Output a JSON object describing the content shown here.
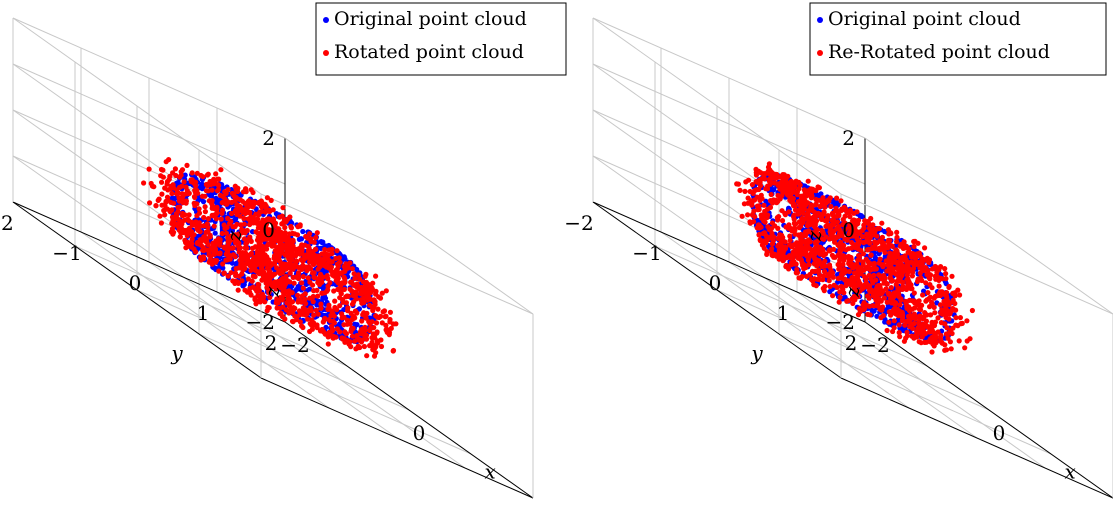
{
  "chart_data": [
    {
      "type": "scatter",
      "dimensions": 3,
      "xlabel": "x",
      "ylabel": "y",
      "zlabel": "z",
      "xlim": [
        -2,
        2
      ],
      "ylim": [
        -2,
        2
      ],
      "zlim": [
        -2,
        2
      ],
      "xticks": [
        "−2",
        "0"
      ],
      "yticks": [
        "−2",
        "−1",
        "0",
        "1",
        "2"
      ],
      "zticks": [
        "−2",
        "0",
        "2"
      ],
      "grid": true,
      "legend_position": "top-right",
      "series": [
        {
          "name": "Original point cloud",
          "color": "#0000ff",
          "shape": "torus",
          "major_radius": 1.5,
          "minor_radius": 0.5,
          "n_points": 900,
          "distribution": "surface"
        },
        {
          "name": "Rotated point cloud",
          "color": "#ff0000",
          "shape": "torus",
          "major_radius": 1.5,
          "minor_radius": 0.5,
          "n_points": 1400,
          "distribution": "surface with noise",
          "rotation_deg": [
            0,
            90,
            0
          ]
        }
      ]
    },
    {
      "type": "scatter",
      "dimensions": 3,
      "xlabel": "x",
      "ylabel": "y",
      "zlabel": "z",
      "xlim": [
        -2,
        2
      ],
      "ylim": [
        -2,
        2
      ],
      "zlim": [
        -2,
        2
      ],
      "xticks": [
        "−2",
        "0",
        "2"
      ],
      "yticks": [
        "−2",
        "−1",
        "0",
        "1",
        "2"
      ],
      "zticks": [
        "−2",
        "0",
        "2"
      ],
      "grid": true,
      "legend_position": "top-right",
      "series": [
        {
          "name": "Original point cloud",
          "color": "#0000ff",
          "shape": "torus",
          "major_radius": 1.5,
          "minor_radius": 0.5,
          "n_points": 900,
          "distribution": "surface"
        },
        {
          "name": "Re-Rotated point cloud",
          "color": "#ff0000",
          "shape": "torus",
          "major_radius": 1.5,
          "minor_radius": 0.5,
          "n_points": 1400,
          "distribution": "surface with noise",
          "rotation_deg": [
            0,
            0,
            0
          ]
        }
      ]
    }
  ]
}
